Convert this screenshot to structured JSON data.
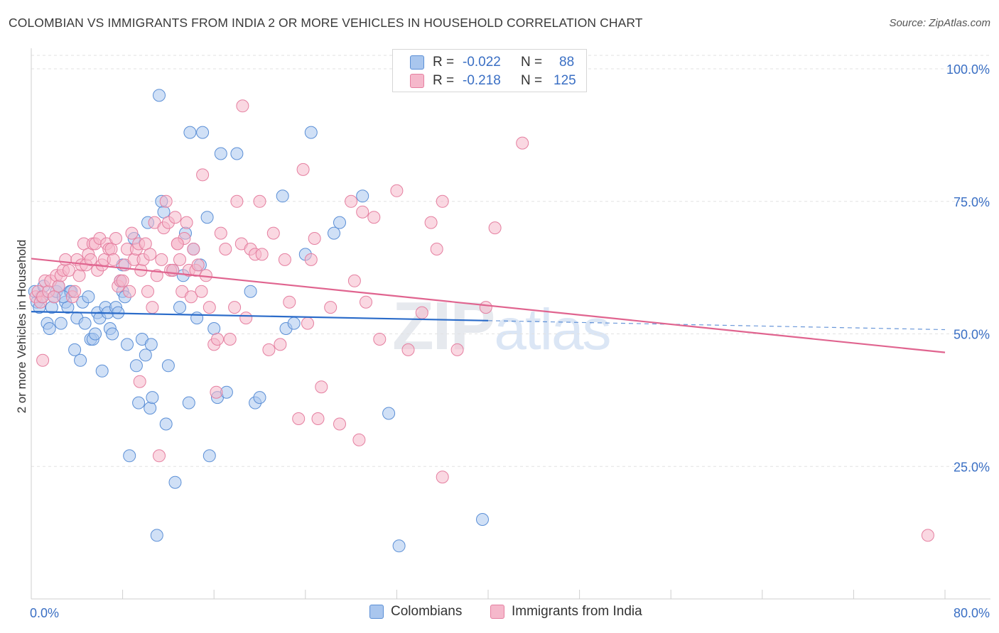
{
  "header": {
    "title": "COLOMBIAN VS IMMIGRANTS FROM INDIA 2 OR MORE VEHICLES IN HOUSEHOLD CORRELATION CHART",
    "source": "Source: ZipAtlas.com"
  },
  "watermark": {
    "zip": "ZIP",
    "atlas": "atlas"
  },
  "legend": {
    "series1": {
      "r_label": "R =",
      "r_value": "-0.022",
      "n_label": "N =",
      "n_value": "88"
    },
    "series2": {
      "r_label": "R =",
      "r_value": "-0.218",
      "n_label": "N =",
      "n_value": "125"
    }
  },
  "bottom_legend": {
    "colombians": "Colombians",
    "india": "Immigrants from India"
  },
  "colors": {
    "blue_fill": "#a9c6ee",
    "blue_stroke": "#5b8fd6",
    "blue_line": "#2a6bc9",
    "pink_fill": "#f5b8cb",
    "pink_stroke": "#e57fa0",
    "pink_line": "#e0648f",
    "axis_label": "#3a6fc4",
    "grid": "#e2e2e2"
  },
  "chart_data": {
    "type": "scatter",
    "title": "COLOMBIAN VS IMMIGRANTS FROM INDIA 2 OR MORE VEHICLES IN HOUSEHOLD CORRELATION CHART",
    "xlabel": "",
    "ylabel": "2 or more Vehicles in Household",
    "xlim": [
      0,
      80
    ],
    "ylim": [
      0,
      100
    ],
    "x_tick_labels": [
      "0.0%",
      "80.0%"
    ],
    "y_ticks": [
      {
        "value": 100,
        "label": "100.0%"
      },
      {
        "value": 75,
        "label": "75.0%"
      },
      {
        "value": 50,
        "label": "50.0%"
      },
      {
        "value": 25,
        "label": "25.0%"
      }
    ],
    "grid": true,
    "series": [
      {
        "name": "Colombians",
        "r": -0.022,
        "n": 88,
        "trend": {
          "x_solid_end": 40,
          "x_dashed_end": 80,
          "y_start": 54.2,
          "y_end": 50.8
        },
        "points": [
          [
            0.3,
            58
          ],
          [
            0.5,
            56
          ],
          [
            0.7,
            55
          ],
          [
            0.9,
            57
          ],
          [
            1.1,
            59
          ],
          [
            1.4,
            52
          ],
          [
            1.6,
            51
          ],
          [
            1.8,
            55
          ],
          [
            2.0,
            57
          ],
          [
            2.2,
            58
          ],
          [
            2.4,
            59
          ],
          [
            2.6,
            52
          ],
          [
            3.0,
            56
          ],
          [
            3.2,
            55
          ],
          [
            3.4,
            58
          ],
          [
            3.8,
            47
          ],
          [
            4.0,
            53
          ],
          [
            4.3,
            45
          ],
          [
            4.5,
            56
          ],
          [
            4.7,
            52
          ],
          [
            5.0,
            57
          ],
          [
            5.2,
            49
          ],
          [
            5.4,
            49
          ],
          [
            5.6,
            50
          ],
          [
            5.8,
            54
          ],
          [
            6.0,
            53
          ],
          [
            6.2,
            43
          ],
          [
            6.5,
            55
          ],
          [
            6.7,
            54
          ],
          [
            6.9,
            51
          ],
          [
            7.1,
            50
          ],
          [
            7.4,
            55
          ],
          [
            7.6,
            54
          ],
          [
            7.8,
            60
          ],
          [
            8.0,
            58
          ],
          [
            8.2,
            57
          ],
          [
            8.4,
            48
          ],
          [
            8.6,
            27
          ],
          [
            9.0,
            68
          ],
          [
            9.2,
            44
          ],
          [
            9.4,
            37
          ],
          [
            9.7,
            49
          ],
          [
            10.0,
            46
          ],
          [
            10.2,
            71
          ],
          [
            10.4,
            36
          ],
          [
            10.6,
            38
          ],
          [
            11.0,
            12
          ],
          [
            11.2,
            95
          ],
          [
            11.4,
            75
          ],
          [
            11.6,
            73
          ],
          [
            11.8,
            33
          ],
          [
            12.0,
            44
          ],
          [
            12.4,
            62
          ],
          [
            12.6,
            22
          ],
          [
            13.0,
            55
          ],
          [
            13.3,
            61
          ],
          [
            13.5,
            69
          ],
          [
            13.8,
            37
          ],
          [
            13.9,
            88
          ],
          [
            14.2,
            66
          ],
          [
            14.5,
            53
          ],
          [
            15.0,
            88
          ],
          [
            15.4,
            72
          ],
          [
            15.6,
            27
          ],
          [
            16.0,
            51
          ],
          [
            16.3,
            38
          ],
          [
            16.6,
            84
          ],
          [
            17.1,
            39
          ],
          [
            18.0,
            84
          ],
          [
            19.2,
            58
          ],
          [
            19.6,
            37
          ],
          [
            20.0,
            38
          ],
          [
            22.0,
            76
          ],
          [
            22.3,
            51
          ],
          [
            23.0,
            52
          ],
          [
            24.0,
            65
          ],
          [
            24.5,
            88
          ],
          [
            26.5,
            69
          ],
          [
            27.0,
            71
          ],
          [
            29.0,
            76
          ],
          [
            31.3,
            35
          ],
          [
            32.2,
            10
          ],
          [
            39.5,
            15
          ],
          [
            8.0,
            63
          ],
          [
            10.5,
            48
          ],
          [
            14.8,
            63
          ],
          [
            3.5,
            58
          ],
          [
            2.8,
            57
          ]
        ]
      },
      {
        "name": "Immigrants from India",
        "r": -0.218,
        "n": 125,
        "trend": {
          "x_start": 0,
          "x_end": 80,
          "y_start": 64.2,
          "y_end": 46.5
        },
        "points": [
          [
            0.4,
            57
          ],
          [
            0.6,
            58
          ],
          [
            0.8,
            56
          ],
          [
            1.0,
            57
          ],
          [
            1.2,
            60
          ],
          [
            1.5,
            58
          ],
          [
            1.7,
            60
          ],
          [
            2.0,
            57
          ],
          [
            2.2,
            61
          ],
          [
            2.4,
            59
          ],
          [
            2.6,
            61
          ],
          [
            2.8,
            62
          ],
          [
            3.0,
            64
          ],
          [
            3.3,
            62
          ],
          [
            3.6,
            57
          ],
          [
            3.8,
            58
          ],
          [
            4.0,
            64
          ],
          [
            4.2,
            61
          ],
          [
            4.4,
            63
          ],
          [
            4.6,
            67
          ],
          [
            4.8,
            63
          ],
          [
            5.0,
            65
          ],
          [
            5.2,
            64
          ],
          [
            5.4,
            67
          ],
          [
            5.6,
            67
          ],
          [
            5.8,
            62
          ],
          [
            6.0,
            68
          ],
          [
            6.2,
            63
          ],
          [
            6.4,
            64
          ],
          [
            6.6,
            67
          ],
          [
            6.8,
            66
          ],
          [
            7.0,
            66
          ],
          [
            7.2,
            64
          ],
          [
            7.4,
            68
          ],
          [
            7.6,
            59
          ],
          [
            7.8,
            60
          ],
          [
            8.0,
            60
          ],
          [
            8.2,
            63
          ],
          [
            8.4,
            66
          ],
          [
            8.6,
            58
          ],
          [
            8.8,
            69
          ],
          [
            9.0,
            64
          ],
          [
            9.2,
            66
          ],
          [
            9.4,
            67
          ],
          [
            9.6,
            62
          ],
          [
            9.8,
            64
          ],
          [
            10.0,
            67
          ],
          [
            10.2,
            58
          ],
          [
            10.4,
            65
          ],
          [
            10.6,
            55
          ],
          [
            10.8,
            71
          ],
          [
            11.0,
            61
          ],
          [
            11.2,
            27
          ],
          [
            11.4,
            64
          ],
          [
            11.6,
            70
          ],
          [
            11.8,
            75
          ],
          [
            12.0,
            71
          ],
          [
            12.2,
            62
          ],
          [
            12.4,
            62
          ],
          [
            12.6,
            72
          ],
          [
            12.8,
            67
          ],
          [
            13.0,
            64
          ],
          [
            13.2,
            58
          ],
          [
            13.4,
            68
          ],
          [
            13.6,
            71
          ],
          [
            13.8,
            62
          ],
          [
            14.0,
            57
          ],
          [
            14.2,
            66
          ],
          [
            14.4,
            62
          ],
          [
            14.6,
            63
          ],
          [
            15.0,
            80
          ],
          [
            15.3,
            61
          ],
          [
            15.6,
            55
          ],
          [
            16.0,
            48
          ],
          [
            16.3,
            49
          ],
          [
            16.6,
            69
          ],
          [
            17.0,
            66
          ],
          [
            17.4,
            49
          ],
          [
            17.8,
            55
          ],
          [
            18.0,
            75
          ],
          [
            18.4,
            67
          ],
          [
            18.8,
            53
          ],
          [
            19.2,
            66
          ],
          [
            19.6,
            65
          ],
          [
            20.0,
            75
          ],
          [
            20.2,
            65
          ],
          [
            20.8,
            47
          ],
          [
            21.2,
            69
          ],
          [
            21.8,
            48
          ],
          [
            22.2,
            64
          ],
          [
            22.6,
            56
          ],
          [
            23.4,
            34
          ],
          [
            23.8,
            81
          ],
          [
            24.2,
            52
          ],
          [
            24.5,
            64
          ],
          [
            24.8,
            68
          ],
          [
            25.1,
            34
          ],
          [
            25.4,
            40
          ],
          [
            26.2,
            55
          ],
          [
            27.0,
            33
          ],
          [
            28.0,
            75
          ],
          [
            28.3,
            60
          ],
          [
            28.7,
            30
          ],
          [
            29.0,
            73
          ],
          [
            29.3,
            56
          ],
          [
            30.0,
            72
          ],
          [
            30.5,
            49
          ],
          [
            32.0,
            77
          ],
          [
            33.0,
            47
          ],
          [
            34.2,
            54
          ],
          [
            35.0,
            71
          ],
          [
            35.5,
            66
          ],
          [
            36.0,
            75
          ],
          [
            36.0,
            23
          ],
          [
            37.3,
            47
          ],
          [
            39.8,
            55
          ],
          [
            40.6,
            70
          ],
          [
            43.0,
            86
          ],
          [
            78.5,
            12
          ],
          [
            1.0,
            45
          ],
          [
            18.5,
            93
          ],
          [
            9.5,
            41
          ],
          [
            12.8,
            67
          ],
          [
            16.2,
            39
          ],
          [
            14.9,
            58
          ]
        ]
      }
    ]
  }
}
